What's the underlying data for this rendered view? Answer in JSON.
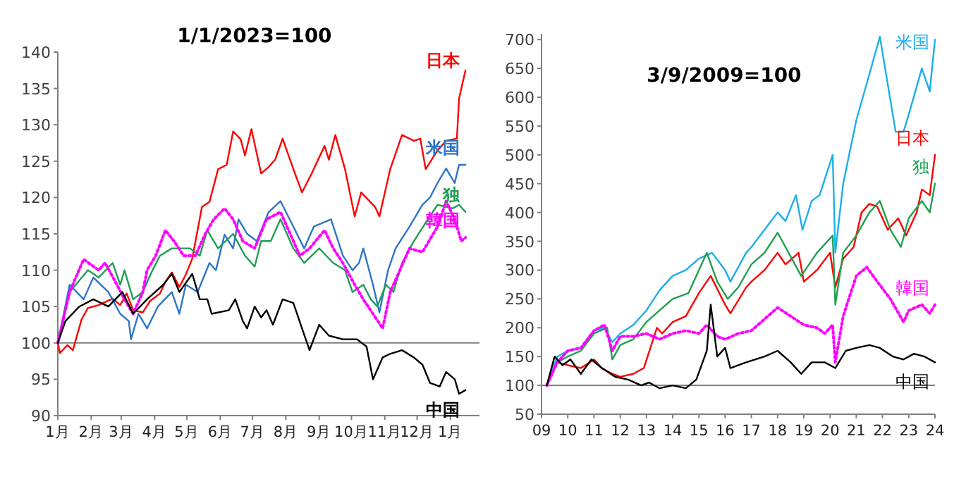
{
  "chart_data": [
    {
      "type": "line",
      "title": "1/1/2023=100",
      "ylim": [
        90,
        140
      ],
      "yticks": [
        90,
        95,
        100,
        105,
        110,
        115,
        120,
        125,
        130,
        135,
        140
      ],
      "xlim": [
        "2023-01-01",
        "2024-01-28"
      ],
      "xticks": [
        {
          "value": "2023-01-01",
          "label": "1月"
        },
        {
          "value": "2023-02-01",
          "label": "2月"
        },
        {
          "value": "2023-03-01",
          "label": "3月"
        },
        {
          "value": "2023-04-01",
          "label": "4月"
        },
        {
          "value": "2023-05-01",
          "label": "5月"
        },
        {
          "value": "2023-06-01",
          "label": "6月"
        },
        {
          "value": "2023-07-01",
          "label": "7月"
        },
        {
          "value": "2023-08-01",
          "label": "8月"
        },
        {
          "value": "2023-09-01",
          "label": "9月"
        },
        {
          "value": "2023-10-01",
          "label": "10月"
        },
        {
          "value": "2023-11-01",
          "label": "11月"
        },
        {
          "value": "2023-12-01",
          "label": "12月"
        },
        {
          "value": "2024-01-01",
          "label": "1月"
        }
      ],
      "legend": false,
      "grid": false,
      "ref_lines": [
        {
          "axis": "y",
          "value": 100,
          "color": "#808080"
        }
      ],
      "series": [
        {
          "name": "日本",
          "color": "#ff0000",
          "line_style": "solid",
          "x": [
            "2023-01-01",
            "2023-01-03",
            "2023-01-10",
            "2023-01-15",
            "2023-01-23",
            "2023-01-29",
            "2023-02-08",
            "2023-02-21",
            "2023-02-28",
            "2023-03-06",
            "2023-03-12",
            "2023-03-21",
            "2023-03-28",
            "2023-04-06",
            "2023-04-11",
            "2023-04-17",
            "2023-04-24",
            "2023-04-30",
            "2023-05-06",
            "2023-05-15",
            "2023-05-22",
            "2023-05-30",
            "2023-06-07",
            "2023-06-13",
            "2023-06-20",
            "2023-06-24",
            "2023-06-30",
            "2023-07-09",
            "2023-07-16",
            "2023-07-22",
            "2023-07-29",
            "2023-08-08",
            "2023-08-16",
            "2023-08-25",
            "2023-09-06",
            "2023-09-10",
            "2023-09-16",
            "2023-09-25",
            "2023-10-04",
            "2023-10-10",
            "2023-10-23",
            "2023-10-27",
            "2023-11-06",
            "2023-11-17",
            "2023-11-28",
            "2023-12-04",
            "2023-12-09",
            "2023-12-20",
            "2023-12-28",
            "2024-01-07",
            "2024-01-09",
            "2024-01-15"
          ],
          "values": [
            100,
            98.6,
            99.7,
            99,
            103.2,
            104.8,
            105.2,
            106.1,
            105.2,
            106.8,
            104.5,
            104.2,
            105.8,
            106.8,
            108.4,
            109.7,
            107.7,
            109.4,
            111.6,
            118.7,
            119.4,
            123.9,
            124.5,
            129.1,
            128,
            125.8,
            129.4,
            123.3,
            124.2,
            125.2,
            128.1,
            123.9,
            120.7,
            123.3,
            127.1,
            125.2,
            128.6,
            123.9,
            117.4,
            120.7,
            118.7,
            117.4,
            123.9,
            128.6,
            127.8,
            128.1,
            123.9,
            126.5,
            127.8,
            128.1,
            133.6,
            137.5
          ]
        },
        {
          "name": "米国",
          "color": "#2e75c6",
          "line_style": "solid",
          "x": [
            "2023-01-01",
            "2023-01-12",
            "2023-01-25",
            "2023-02-03",
            "2023-02-17",
            "2023-02-28",
            "2023-03-08",
            "2023-03-10",
            "2023-03-17",
            "2023-03-25",
            "2023-04-04",
            "2023-04-17",
            "2023-04-24",
            "2023-04-30",
            "2023-05-11",
            "2023-05-22",
            "2023-05-28",
            "2023-06-05",
            "2023-06-13",
            "2023-06-18",
            "2023-06-26",
            "2023-07-05",
            "2023-07-16",
            "2023-07-27",
            "2023-08-08",
            "2023-08-18",
            "2023-08-27",
            "2023-09-12",
            "2023-09-23",
            "2023-10-02",
            "2023-10-08",
            "2023-10-12",
            "2023-10-21",
            "2023-10-27",
            "2023-11-04",
            "2023-11-11",
            "2023-11-24",
            "2023-12-06",
            "2023-12-13",
            "2023-12-20",
            "2023-12-28",
            "2024-01-05",
            "2024-01-09",
            "2024-01-15"
          ],
          "values": [
            100,
            108,
            106,
            109,
            107,
            104,
            103,
            100.5,
            104,
            102,
            105,
            107,
            104,
            108,
            107,
            111,
            110,
            114.9,
            113,
            117,
            115,
            114,
            118,
            119.5,
            116,
            113,
            116,
            117,
            112,
            110,
            111,
            113,
            108,
            104.2,
            110,
            113,
            116,
            119,
            120,
            122,
            124,
            122,
            124.5,
            124.5
          ]
        },
        {
          "name": "独",
          "color": "#1e9e55",
          "line_style": "solid",
          "x": [
            "2023-01-01",
            "2023-01-12",
            "2023-01-29",
            "2023-02-08",
            "2023-02-21",
            "2023-02-28",
            "2023-03-04",
            "2023-03-12",
            "2023-03-21",
            "2023-03-30",
            "2023-04-06",
            "2023-04-17",
            "2023-05-04",
            "2023-05-13",
            "2023-05-20",
            "2023-05-30",
            "2023-06-13",
            "2023-06-24",
            "2023-07-03",
            "2023-07-09",
            "2023-07-18",
            "2023-07-27",
            "2023-08-08",
            "2023-08-18",
            "2023-09-01",
            "2023-09-14",
            "2023-09-25",
            "2023-10-02",
            "2023-10-12",
            "2023-10-19",
            "2023-10-25",
            "2023-11-02",
            "2023-11-09",
            "2023-11-17",
            "2023-11-28",
            "2023-12-11",
            "2023-12-20",
            "2024-01-03",
            "2024-01-09",
            "2024-01-15"
          ],
          "values": [
            100,
            107,
            110,
            109,
            111,
            108,
            110,
            106,
            107,
            110,
            112,
            113,
            113,
            112,
            115.5,
            113,
            115,
            112,
            110.5,
            114,
            114,
            117,
            113,
            111,
            113,
            111,
            110,
            107,
            108,
            106,
            105,
            108,
            107,
            111,
            114,
            117,
            119,
            118.5,
            119,
            118
          ]
        },
        {
          "name": "韓国",
          "color": "#ff00ff",
          "line_style": "dotted",
          "x": [
            "2023-01-01",
            "2023-01-12",
            "2023-01-25",
            "2023-02-08",
            "2023-02-14",
            "2023-02-25",
            "2023-03-04",
            "2023-03-12",
            "2023-03-21",
            "2023-03-25",
            "2023-04-02",
            "2023-04-11",
            "2023-04-19",
            "2023-04-28",
            "2023-05-09",
            "2023-05-18",
            "2023-05-26",
            "2023-06-05",
            "2023-06-13",
            "2023-06-22",
            "2023-07-03",
            "2023-07-14",
            "2023-07-27",
            "2023-08-05",
            "2023-08-14",
            "2023-08-23",
            "2023-09-06",
            "2023-09-14",
            "2023-09-23",
            "2023-10-04",
            "2023-10-12",
            "2023-10-21",
            "2023-10-30",
            "2023-11-06",
            "2023-11-15",
            "2023-11-24",
            "2023-12-06",
            "2023-12-20",
            "2023-12-28",
            "2024-01-05",
            "2024-01-11",
            "2024-01-15"
          ],
          "values": [
            100,
            107,
            111.5,
            110,
            111,
            108,
            106,
            104,
            107,
            110,
            112,
            115.5,
            114,
            112,
            112,
            115,
            117,
            118.5,
            117,
            114,
            113,
            117,
            118,
            115,
            112,
            113,
            115.5,
            113,
            111,
            108,
            106,
            104,
            102,
            107,
            110,
            113,
            112.5,
            116,
            119.5,
            117,
            114,
            114.5
          ]
        },
        {
          "name": "中国",
          "color": "#000000",
          "line_style": "solid",
          "x": [
            "2023-01-01",
            "2023-01-08",
            "2023-01-21",
            "2023-02-03",
            "2023-02-17",
            "2023-03-02",
            "2023-03-12",
            "2023-03-25",
            "2023-04-09",
            "2023-04-17",
            "2023-04-24",
            "2023-05-06",
            "2023-05-13",
            "2023-05-20",
            "2023-05-24",
            "2023-06-09",
            "2023-06-15",
            "2023-06-22",
            "2023-06-26",
            "2023-07-03",
            "2023-07-09",
            "2023-07-14",
            "2023-07-20",
            "2023-07-29",
            "2023-08-08",
            "2023-08-16",
            "2023-08-23",
            "2023-09-01",
            "2023-09-10",
            "2023-09-23",
            "2023-10-06",
            "2023-10-15",
            "2023-10-21",
            "2023-10-30",
            "2023-11-06",
            "2023-11-17",
            "2023-11-28",
            "2023-12-06",
            "2023-12-13",
            "2023-12-22",
            "2023-12-28",
            "2024-01-05",
            "2024-01-09",
            "2024-01-15"
          ],
          "values": [
            100,
            103,
            105,
            106,
            105,
            107,
            104,
            106,
            108,
            109.5,
            107,
            109.5,
            106,
            106,
            104,
            104.5,
            106,
            103,
            102,
            105,
            103.5,
            104.5,
            102.5,
            106,
            105.5,
            102,
            99,
            102.5,
            101,
            100.5,
            100.5,
            99.5,
            95,
            98,
            98.5,
            99,
            98,
            97,
            94.5,
            94,
            96,
            95,
            93,
            93.5
          ]
        }
      ]
    },
    {
      "type": "line",
      "title": "3/9/2009=100",
      "ylim": [
        50,
        710
      ],
      "yticks": [
        50,
        100,
        150,
        200,
        250,
        300,
        350,
        400,
        450,
        500,
        550,
        600,
        650,
        700
      ],
      "xlim": [
        2009,
        2024
      ],
      "xticks": [
        {
          "value": 2009,
          "label": "09"
        },
        {
          "value": 2010,
          "label": "10"
        },
        {
          "value": 2011,
          "label": "11"
        },
        {
          "value": 2012,
          "label": "12"
        },
        {
          "value": 2013,
          "label": "13"
        },
        {
          "value": 2014,
          "label": "14"
        },
        {
          "value": 2015,
          "label": "15"
        },
        {
          "value": 2016,
          "label": "16"
        },
        {
          "value": 2017,
          "label": "17"
        },
        {
          "value": 2018,
          "label": "18"
        },
        {
          "value": 2019,
          "label": "19"
        },
        {
          "value": 2020,
          "label": "20"
        },
        {
          "value": 2021,
          "label": "21"
        },
        {
          "value": 2022,
          "label": "22"
        },
        {
          "value": 2023,
          "label": "23"
        },
        {
          "value": 2024,
          "label": "24"
        }
      ],
      "legend": false,
      "grid": false,
      "ref_lines": [
        {
          "axis": "y",
          "value": 100,
          "color": "#808080"
        }
      ],
      "series": [
        {
          "name": "米国",
          "color": "#1ab0e8",
          "line_style": "solid",
          "x": [
            2009.2,
            2009.6,
            2010,
            2010.5,
            2011,
            2011.4,
            2011.7,
            2012,
            2012.5,
            2013,
            2013.5,
            2014,
            2014.5,
            2015,
            2015.5,
            2016,
            2016.2,
            2016.8,
            2017,
            2017.5,
            2018,
            2018.3,
            2018.7,
            2018.95,
            2019.3,
            2019.6,
            2020.1,
            2020.2,
            2020.5,
            2021,
            2021.5,
            2021.9,
            2022.5,
            2022.8,
            2023,
            2023.5,
            2023.8,
            2024
          ],
          "values": [
            100,
            150,
            160,
            165,
            195,
            200,
            175,
            190,
            205,
            230,
            265,
            290,
            300,
            320,
            330,
            300,
            280,
            330,
            340,
            370,
            400,
            385,
            430,
            370,
            420,
            430,
            500,
            330,
            450,
            560,
            640,
            705,
            540,
            540,
            570,
            650,
            610,
            700
          ]
        },
        {
          "name": "日本",
          "color": "#ff0000",
          "line_style": "solid",
          "x": [
            2009.2,
            2009.6,
            2010,
            2010.5,
            2011,
            2011.3,
            2011.7,
            2012,
            2012.5,
            2012.9,
            2013.4,
            2013.6,
            2014,
            2014.5,
            2015,
            2015.45,
            2016,
            2016.2,
            2016.8,
            2017,
            2017.5,
            2018,
            2018.3,
            2018.8,
            2019,
            2019.5,
            2020,
            2020.2,
            2020.5,
            2020.9,
            2021.2,
            2021.5,
            2021.8,
            2022.2,
            2022.6,
            2022.9,
            2023.3,
            2023.5,
            2023.8,
            2024
          ],
          "values": [
            100,
            140,
            135,
            130,
            145,
            130,
            120,
            115,
            120,
            130,
            200,
            190,
            210,
            220,
            260,
            290,
            240,
            225,
            270,
            280,
            300,
            330,
            310,
            330,
            280,
            300,
            330,
            270,
            320,
            340,
            400,
            415,
            410,
            370,
            390,
            360,
            400,
            440,
            430,
            500
          ]
        },
        {
          "name": "独",
          "color": "#1ea050",
          "line_style": "solid",
          "x": [
            2009.2,
            2009.6,
            2010,
            2010.5,
            2011,
            2011.5,
            2011.7,
            2012,
            2012.5,
            2013,
            2013.5,
            2014,
            2014.6,
            2015.3,
            2015.7,
            2016.1,
            2016.5,
            2017,
            2017.5,
            2018,
            2018.9,
            2019.5,
            2020.1,
            2020.2,
            2020.5,
            2021,
            2021.5,
            2021.9,
            2022.3,
            2022.7,
            2023,
            2023.5,
            2023.8,
            2024
          ],
          "values": [
            100,
            140,
            150,
            160,
            190,
            200,
            145,
            170,
            180,
            210,
            230,
            250,
            260,
            330,
            280,
            250,
            270,
            310,
            330,
            365,
            290,
            330,
            360,
            240,
            330,
            360,
            400,
            420,
            370,
            340,
            390,
            420,
            400,
            450
          ]
        },
        {
          "name": "韓国",
          "color": "#ff00ff",
          "line_style": "dotted",
          "x": [
            2009.2,
            2009.6,
            2010,
            2010.5,
            2011,
            2011.4,
            2011.7,
            2012,
            2012.5,
            2013,
            2013.5,
            2014,
            2014.5,
            2015,
            2015.3,
            2015.7,
            2016,
            2016.5,
            2017,
            2017.5,
            2018,
            2018.5,
            2019,
            2019.5,
            2019.8,
            2020.1,
            2020.2,
            2020.5,
            2021,
            2021.4,
            2021.8,
            2022.3,
            2022.8,
            2023,
            2023.5,
            2023.8,
            2024
          ],
          "values": [
            100,
            140,
            160,
            165,
            195,
            205,
            160,
            185,
            185,
            190,
            180,
            190,
            195,
            190,
            205,
            185,
            180,
            190,
            195,
            215,
            235,
            220,
            205,
            200,
            190,
            205,
            140,
            220,
            290,
            305,
            280,
            250,
            210,
            230,
            240,
            225,
            240
          ]
        },
        {
          "name": "中国",
          "color": "#000000",
          "line_style": "solid",
          "x": [
            2009.2,
            2009.5,
            2009.8,
            2010.1,
            2010.5,
            2010.9,
            2011.3,
            2011.8,
            2012.3,
            2012.8,
            2013.1,
            2013.5,
            2014,
            2014.5,
            2014.9,
            2015.3,
            2015.45,
            2015.7,
            2016,
            2016.2,
            2016.8,
            2017.5,
            2018,
            2018.5,
            2018.9,
            2019.3,
            2019.8,
            2020.2,
            2020.6,
            2021,
            2021.5,
            2021.9,
            2022.4,
            2022.8,
            2023.2,
            2023.6,
            2024
          ],
          "values": [
            100,
            150,
            135,
            145,
            120,
            145,
            130,
            115,
            110,
            100,
            105,
            95,
            100,
            95,
            110,
            160,
            240,
            150,
            165,
            130,
            140,
            150,
            160,
            140,
            120,
            140,
            140,
            130,
            160,
            165,
            170,
            165,
            150,
            145,
            155,
            150,
            140
          ]
        }
      ]
    }
  ]
}
